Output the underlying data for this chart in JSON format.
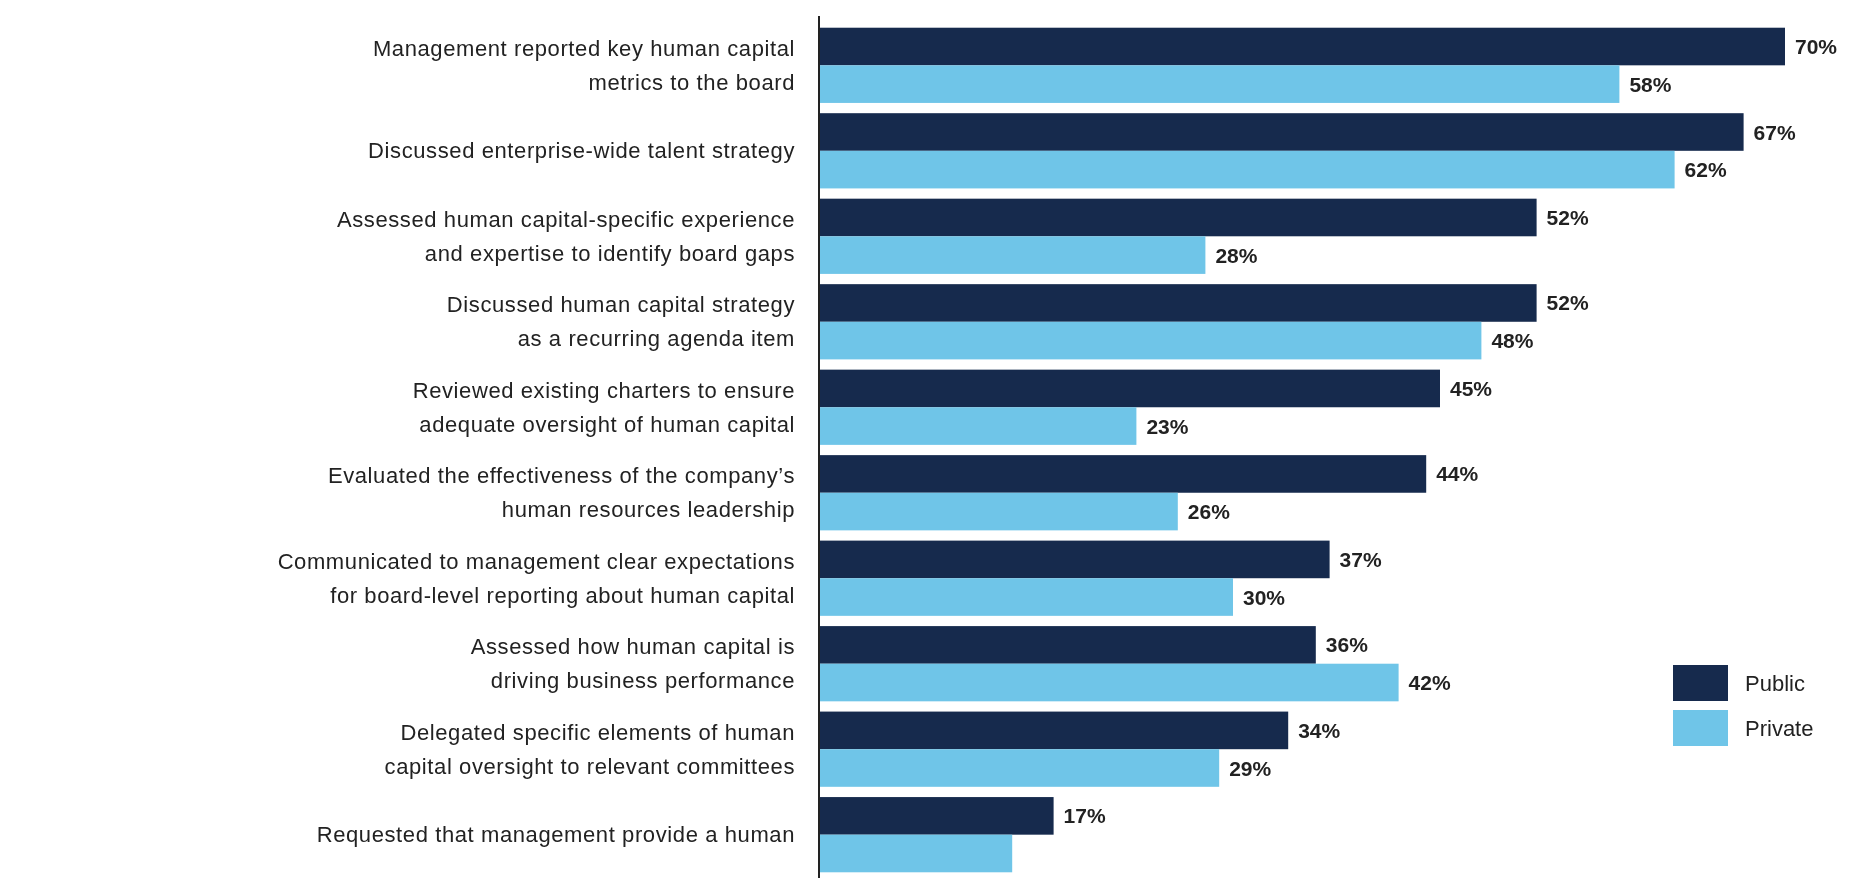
{
  "chart_data": {
    "type": "bar",
    "orientation": "horizontal",
    "legend": "bottom right",
    "categories": [
      "Management reported key human capital\nmetrics to the board",
      "Discussed enterprise-wide talent strategy",
      "Assessed human capital-specific experience\nand expertise to identify board gaps",
      "Discussed human capital strategy\nas a recurring agenda item",
      "Reviewed existing charters to ensure\nadequate oversight of human capital",
      "Evaluated the effectiveness of the company’s\nhuman resources leadership",
      "Communicated to management clear expectations\nfor board-level reporting about human capital",
      "Assessed how human capital is\ndriving business performance",
      "Delegated specific elements of human\ncapital oversight to relevant committees",
      "Requested that management provide a human"
    ],
    "series": [
      {
        "name": "Public",
        "color": "#162a4d",
        "values": [
          70,
          67,
          52,
          52,
          45,
          44,
          37,
          36,
          34,
          17
        ],
        "value_labels": [
          "70%",
          "67%",
          "52%",
          "52%",
          "45%",
          "44%",
          "37%",
          "36%",
          "34%",
          "17%"
        ]
      },
      {
        "name": "Private",
        "color": "#6fc5e8",
        "values": [
          58,
          62,
          28,
          48,
          23,
          26,
          30,
          42,
          29,
          14
        ],
        "value_labels": [
          "58%",
          "62%",
          "28%",
          "48%",
          "23%",
          "26%",
          "30%",
          "42%",
          "29%",
          null
        ]
      }
    ]
  }
}
